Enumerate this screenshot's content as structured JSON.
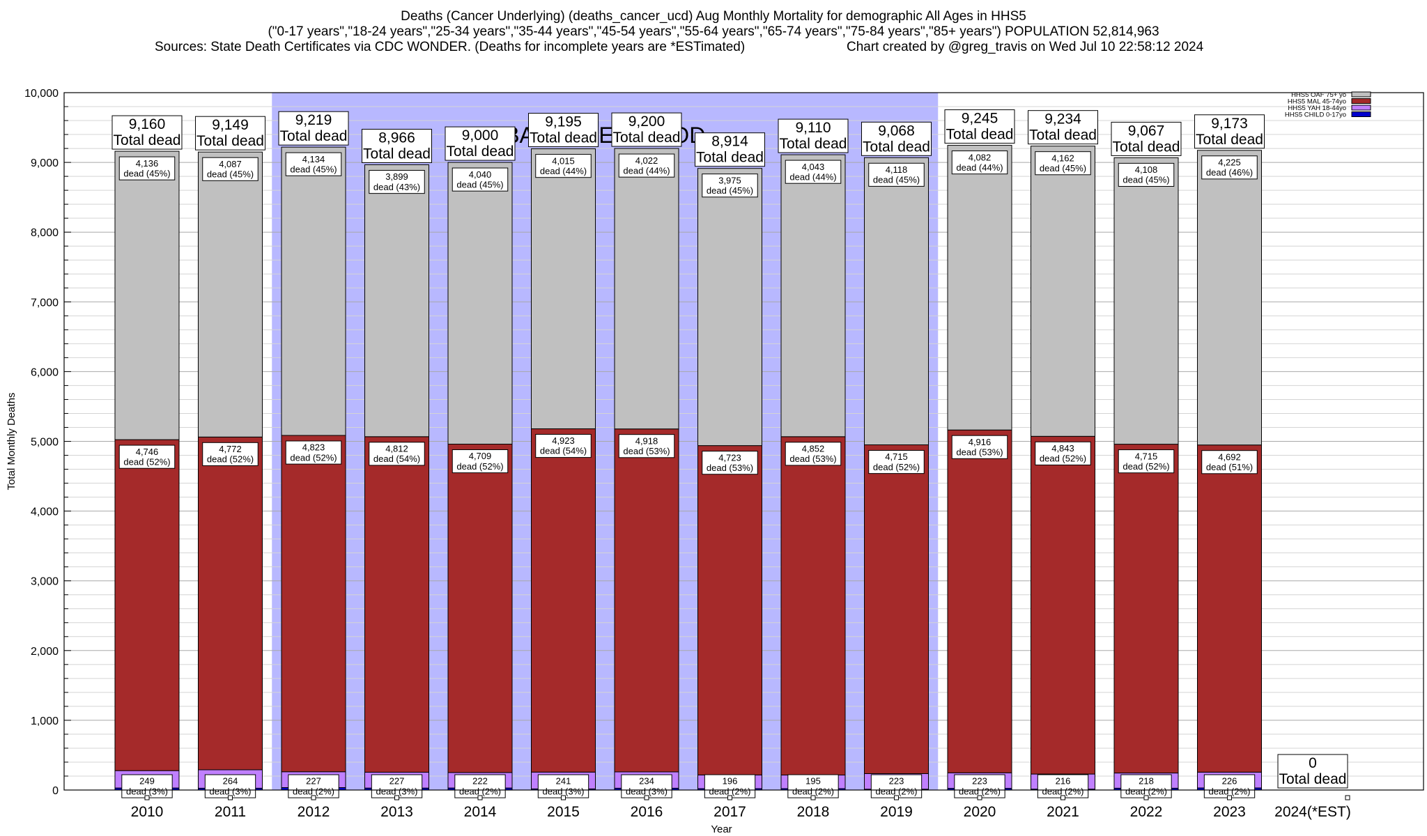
{
  "title": {
    "line1": "Deaths (Cancer Underlying) (deaths_cancer_ucd) Aug Monthly Mortality for demographic All Ages in HHS5",
    "line2": "(\"0-17 years\",\"18-24 years\",\"25-34 years\",\"35-44 years\",\"45-54 years\",\"55-64 years\",\"65-74 years\",\"75-84 years\",\"85+ years\") POPULATION 52,814,963",
    "line3_left": "Sources: State Death Certificates via CDC WONDER. (Deaths for incomplete years are *ESTimated)",
    "line3_right": "Chart created by @greg_travis on Wed Jul 10 22:58:12 2024"
  },
  "colors": {
    "oaf": "#c0c0c0",
    "mal": "#a52a2a",
    "yah": "#c080ff",
    "child": "#0000cc",
    "baseline": "#b8b8ff"
  },
  "chart_data": {
    "type": "bar",
    "stacked": true,
    "xlabel": "Year",
    "ylabel": "Total Monthly Deaths",
    "ylim": [
      0,
      10000
    ],
    "yticks": [
      0,
      1000,
      2000,
      3000,
      4000,
      5000,
      6000,
      7000,
      8000,
      9000,
      10000
    ],
    "ytick_labels": [
      "0",
      "1,000",
      "2,000",
      "3,000",
      "4,000",
      "5,000",
      "6,000",
      "7,000",
      "8,000",
      "9,000",
      "10,000"
    ],
    "categories": [
      "2010",
      "2011",
      "2012",
      "2013",
      "2014",
      "2015",
      "2016",
      "2017",
      "2018",
      "2019",
      "2020",
      "2021",
      "2022",
      "2023",
      "2024(*EST)"
    ],
    "baseline_period": {
      "label": "BASELINE PERIOD",
      "from": "2012",
      "to": "2019"
    },
    "series": [
      {
        "name": "HHS5 CHILD 0-17yo",
        "color_key": "child",
        "values": [
          29,
          26,
          35,
          28,
          29,
          16,
          26,
          20,
          20,
          12,
          24,
          13,
          26,
          30,
          0
        ]
      },
      {
        "name": "HHS5 YAH 18-44yo",
        "color_key": "yah",
        "values": [
          249,
          264,
          227,
          227,
          222,
          241,
          234,
          196,
          195,
          223,
          223,
          216,
          218,
          226,
          0
        ],
        "labels": [
          "249\ndead (3%)",
          "264\ndead (3%)",
          "227\ndead (2%)",
          "227\ndead (3%)",
          "222\ndead (2%)",
          "241\ndead (3%)",
          "234\ndead (3%)",
          "196\ndead (2%)",
          "195\ndead (2%)",
          "223\ndead (2%)",
          "223\ndead (2%)",
          "216\ndead (2%)",
          "218\ndead (2%)",
          "226\ndead (2%)",
          ""
        ]
      },
      {
        "name": "HHS5 MAL 45-74yo",
        "color_key": "mal",
        "values": [
          4746,
          4772,
          4823,
          4812,
          4709,
          4923,
          4918,
          4723,
          4852,
          4715,
          4916,
          4843,
          4715,
          4692,
          0
        ],
        "labels": [
          "4,746\ndead (52%)",
          "4,772\ndead (52%)",
          "4,823\ndead (52%)",
          "4,812\ndead (54%)",
          "4,709\ndead (52%)",
          "4,923\ndead (54%)",
          "4,918\ndead (53%)",
          "4,723\ndead (53%)",
          "4,852\ndead (53%)",
          "4,715\ndead (52%)",
          "4,916\ndead (53%)",
          "4,843\ndead (52%)",
          "4,715\ndead (52%)",
          "4,692\ndead (51%)",
          ""
        ]
      },
      {
        "name": "HHS5 OAF 75+ yo",
        "color_key": "oaf",
        "values": [
          4136,
          4087,
          4134,
          3899,
          4040,
          4015,
          4022,
          3975,
          4043,
          4118,
          4082,
          4162,
          4108,
          4225,
          0
        ],
        "labels": [
          "4,136\ndead (45%)",
          "4,087\ndead (45%)",
          "4,134\ndead (45%)",
          "3,899\ndead (43%)",
          "4,040\ndead (45%)",
          "4,015\ndead (44%)",
          "4,022\ndead (44%)",
          "3,975\ndead (45%)",
          "4,043\ndead (44%)",
          "4,118\ndead (45%)",
          "4,082\ndead (44%)",
          "4,162\ndead (45%)",
          "4,108\ndead (45%)",
          "4,225\ndead (46%)",
          ""
        ]
      }
    ],
    "totals": [
      9160,
      9149,
      9219,
      8966,
      9000,
      9195,
      9200,
      8914,
      9110,
      9068,
      9245,
      9234,
      9067,
      9173,
      0
    ],
    "total_labels": [
      "9,160",
      "9,149",
      "9,219",
      "8,966",
      "9,000",
      "9,195",
      "9,200",
      "8,914",
      "9,110",
      "9,068",
      "9,245",
      "9,234",
      "9,067",
      "9,173",
      "0"
    ],
    "total_suffix": "Total dead",
    "legend": {
      "position": "top-right",
      "entries": [
        {
          "label": "HHS5 OAF 75+ yo",
          "color_key": "oaf"
        },
        {
          "label": "HHS5 MAL 45-74yo",
          "color_key": "mal"
        },
        {
          "label": "HHS5 YAH 18-44yo",
          "color_key": "yah"
        },
        {
          "label": "HHS5 CHILD 0-17yo",
          "color_key": "child"
        }
      ]
    }
  }
}
